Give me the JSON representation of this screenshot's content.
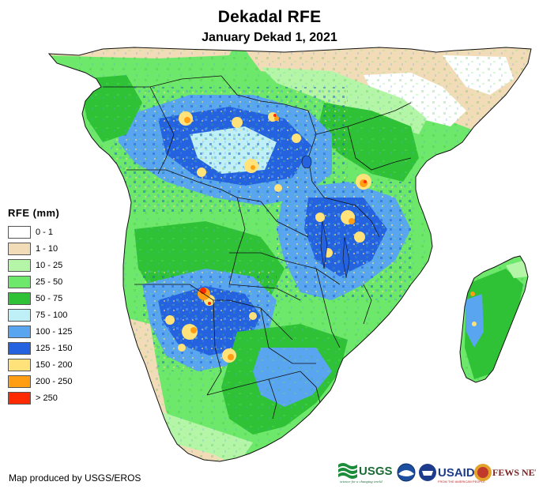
{
  "header": {
    "title": "Dekadal RFE",
    "subtitle": "January Dekad 1, 2021"
  },
  "legend": {
    "title": "RFE (mm)",
    "items": [
      {
        "label": "0 - 1",
        "color": "#ffffff"
      },
      {
        "label": "1 - 10",
        "color": "#f2dcb8"
      },
      {
        "label": "10 - 25",
        "color": "#b5f5a8"
      },
      {
        "label": "25 - 50",
        "color": "#6ee86a"
      },
      {
        "label": "50 - 75",
        "color": "#2fc136"
      },
      {
        "label": "75 - 100",
        "color": "#bff0f7"
      },
      {
        "label": "100 - 125",
        "color": "#5aa5ef"
      },
      {
        "label": "125 - 150",
        "color": "#2462e0"
      },
      {
        "label": "150 - 200",
        "color": "#ffe27a"
      },
      {
        "label": "200 - 250",
        "color": "#ff9e12"
      },
      {
        "label": "> 250",
        "color": "#ff2a00"
      }
    ]
  },
  "footer": {
    "credit": "Map produced by USGS/EROS"
  },
  "logos": {
    "usgs": "USGS",
    "usgs_tagline": "science for a changing world",
    "usaid": "USAID",
    "usaid_tagline": "FROM THE AMERICAN PEOPLE",
    "fews": "FEWS NET",
    "noaa_icon": "noaa-emblem"
  }
}
